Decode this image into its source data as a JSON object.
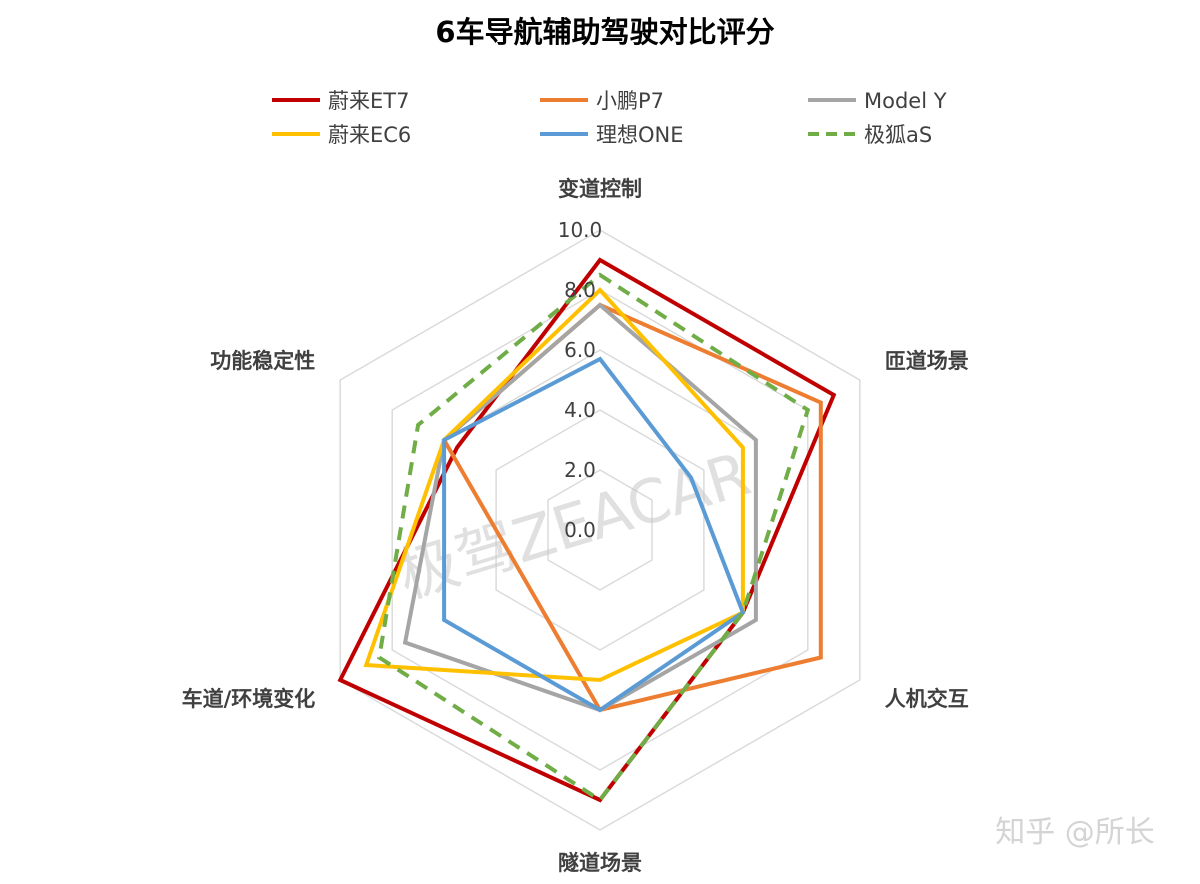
{
  "chart_data": {
    "type": "radar",
    "title": "6车导航辅助驾驶对比评分",
    "categories": [
      "变道控制",
      "匝道场景",
      "人机交互",
      "隧道场景",
      "车道/环境变化",
      "功能稳定性"
    ],
    "r_ticks": [
      "0.0",
      "2.0",
      "4.0",
      "6.0",
      "8.0",
      "10.0"
    ],
    "rlim": [
      0,
      10
    ],
    "grid": true,
    "legend_position": "top",
    "series": [
      {
        "name": "蔚来ET7",
        "color": "#C00000",
        "dash": false,
        "values": [
          9.0,
          9.0,
          5.5,
          9.0,
          10.0,
          5.5
        ]
      },
      {
        "name": "小鹏P7",
        "color": "#ED7D31",
        "dash": false,
        "values": [
          7.5,
          8.5,
          8.5,
          6.0,
          3.0,
          6.0
        ]
      },
      {
        "name": "Model Y",
        "color": "#A5A5A5",
        "dash": false,
        "values": [
          7.5,
          6.0,
          6.0,
          6.0,
          7.5,
          6.0
        ]
      },
      {
        "name": "蔚来EC6",
        "color": "#FFC000",
        "dash": false,
        "values": [
          8.0,
          5.5,
          5.5,
          5.0,
          9.0,
          6.0
        ]
      },
      {
        "name": "理想ONE",
        "color": "#5B9BD5",
        "dash": false,
        "values": [
          5.7,
          3.5,
          5.5,
          6.0,
          6.0,
          6.0
        ]
      },
      {
        "name": "极狐aS",
        "color": "#70AD47",
        "dash": true,
        "values": [
          8.5,
          8.0,
          5.5,
          9.0,
          8.5,
          7.0
        ]
      }
    ]
  },
  "watermark": "极驾ZEACAR",
  "credit": "知乎 @所长"
}
